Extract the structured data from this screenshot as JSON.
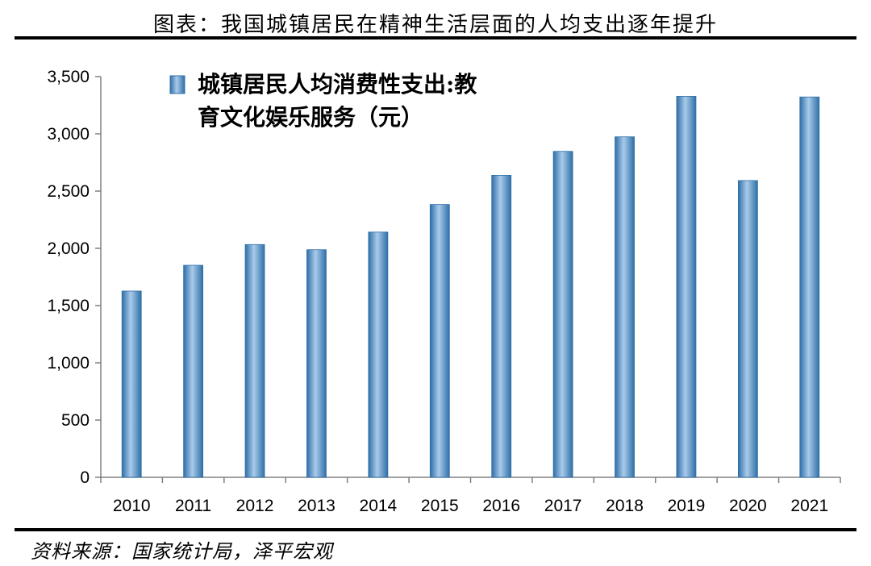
{
  "header": {
    "title": "图表：我国城镇居民在精神生活层面的人均支出逐年提升"
  },
  "footer": {
    "source": "资料来源：国家统计局，泽平宏观"
  },
  "chart_data": {
    "type": "bar",
    "categories": [
      "2010",
      "2011",
      "2012",
      "2013",
      "2014",
      "2015",
      "2016",
      "2017",
      "2018",
      "2019",
      "2020",
      "2021"
    ],
    "series": [
      {
        "name": "城镇居民人均消费性支出:教育文化娱乐服务（元）",
        "values": [
          1627,
          1852,
          2033,
          1988,
          2142,
          2383,
          2638,
          2847,
          2974,
          3328,
          2592,
          3322
        ]
      }
    ],
    "legend_lines": [
      "城镇居民人均消费性支出:教",
      "育文化娱乐服务（元）"
    ],
    "ylim": [
      0,
      3500
    ],
    "yticks": [
      0,
      500,
      1000,
      1500,
      2000,
      2500,
      3000,
      3500
    ],
    "ytick_labels": [
      "0",
      "500",
      "1,000",
      "1,500",
      "2,000",
      "2,500",
      "3,000",
      "3,500"
    ],
    "grid": false,
    "legend_position": "top-left",
    "bar_color": "#4f8fc4"
  }
}
